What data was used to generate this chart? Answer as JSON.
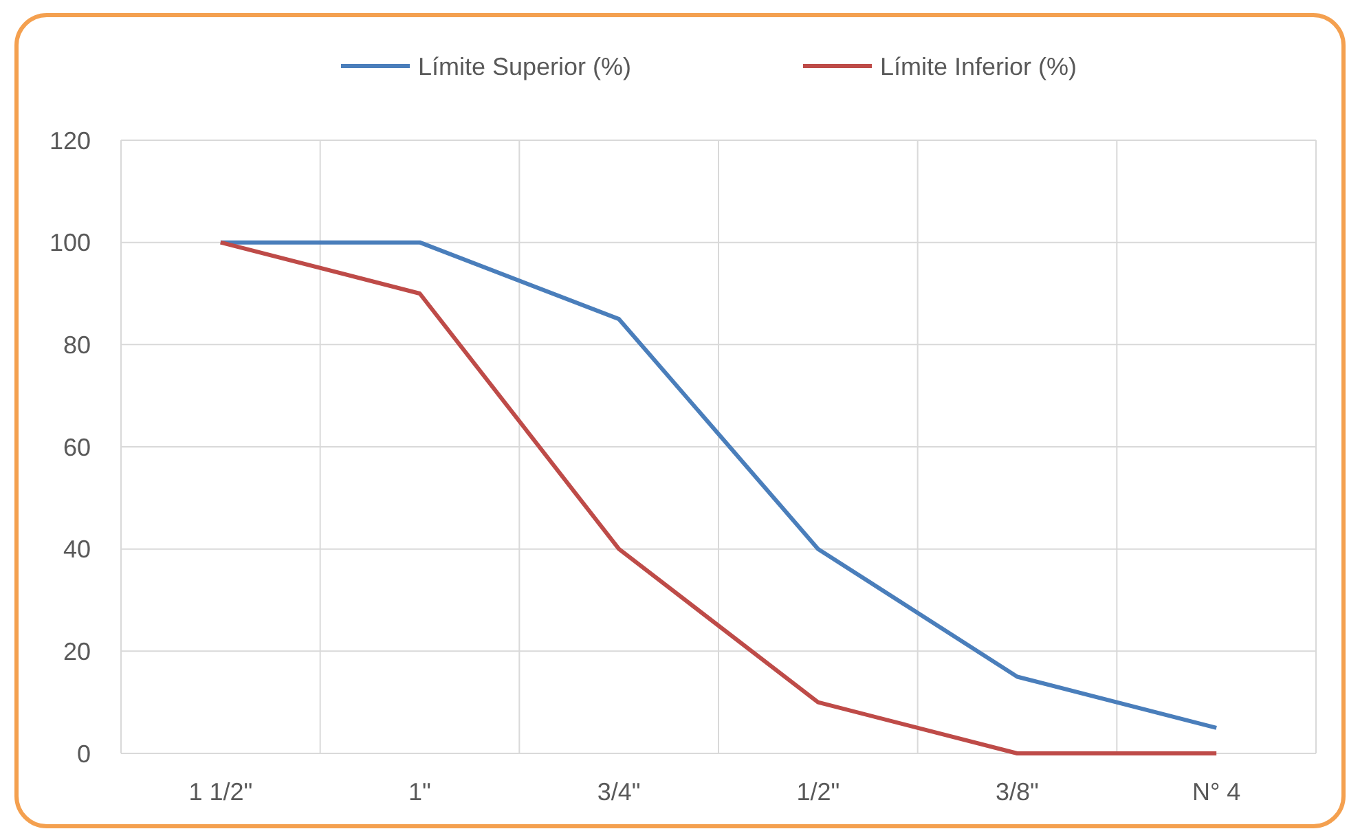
{
  "chart_data": {
    "type": "line",
    "categories": [
      "1 1/2\"",
      "1\"",
      "3/4\"",
      "1/2\"",
      "3/8\"",
      "N° 4"
    ],
    "series": [
      {
        "name": "Límite Superior (%)",
        "color": "#4a7ebb",
        "values": [
          100,
          100,
          85,
          40,
          15,
          5
        ]
      },
      {
        "name": "Límite Inferior (%)",
        "color": "#be4b48",
        "values": [
          100,
          90,
          40,
          10,
          0,
          0
        ]
      }
    ],
    "ylim": [
      0,
      120
    ],
    "yticks": [
      0,
      20,
      40,
      60,
      80,
      100,
      120
    ],
    "grid": true,
    "legend": "top",
    "marker": "none",
    "line_style": "solid"
  }
}
